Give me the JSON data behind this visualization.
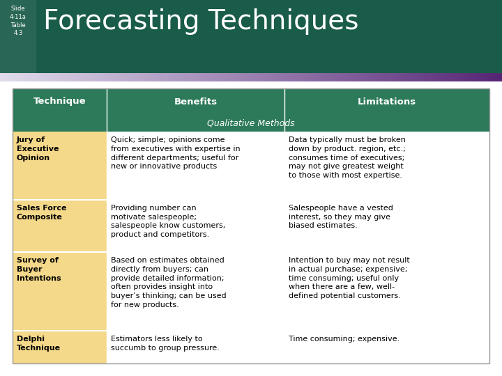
{
  "title": "Forecasting Techniques",
  "slide_label": "Slide\n4-11a\nTable\n4.3",
  "header_bg": "#1a5c4a",
  "header_text_color": "#ffffff",
  "slide_label_bg": "#2a6655",
  "title_color": "#ffffff",
  "table_header_bg": "#2d7a5a",
  "table_header_text": "#ffffff",
  "technique_col_bg": "#f5d98a",
  "data_col_bg": "#ffffff",
  "cell_text_color": "#000000",
  "columns": [
    "Technique",
    "Benefits",
    "Limitations"
  ],
  "section_label": "Qualitative Methods",
  "rows": [
    {
      "technique": "Jury of\nExecutive\nOpinion",
      "benefits": "Quick; simple; opinions come\nfrom executives with expertise in\ndifferent departments; useful for\nnew or innovative products",
      "limitations": "Data typically must be broken\ndown by product. region, etc.;\nconsumes time of executives;\nmay not give greatest weight\nto those with most expertise."
    },
    {
      "technique": "Sales Force\nComposite",
      "benefits": "Providing number can\nmotivate salespeople;\nsalespeople know customers,\nproduct and competitors.",
      "limitations": "Salespeople have a vested\ninterest, so they may give\nbiased estimates."
    },
    {
      "technique": "Survey of\nBuyer\nIntentions",
      "benefits": "Based on estimates obtained\ndirectly from buyers; can\nprovide detailed information;\noften provides insight into\nbuyer’s thinking; can be used\nfor new products.",
      "limitations": "Intention to buy may not result\nin actual purchase; expensive;\ntime consuming; useful only\nwhen there are a few, well-\ndefined potential customers."
    },
    {
      "technique": "Delphi\nTechnique",
      "benefits": "Estimators less likely to\nsuccumb to group pressure.",
      "limitations": "Time consuming; expensive."
    }
  ]
}
